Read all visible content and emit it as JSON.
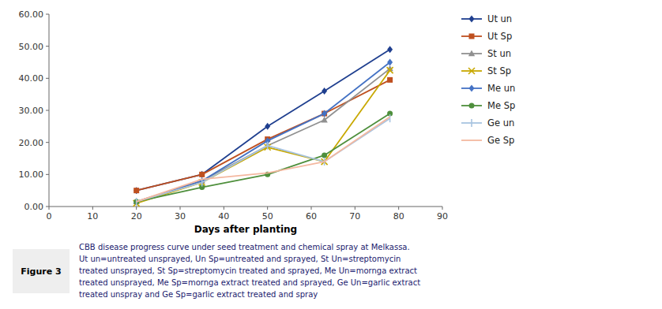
{
  "chart_data": {
    "type": "line",
    "xlabel": "Days after planting",
    "x": [
      20,
      35,
      50,
      63,
      78
    ],
    "series": [
      {
        "name": "Ut un",
        "color": "#1f3f8f",
        "marker": "diamond",
        "values": [
          5.0,
          10.0,
          25.0,
          36.0,
          49.0
        ]
      },
      {
        "name": "Ut Sp",
        "color": "#bf5020",
        "marker": "square",
        "values": [
          5.0,
          10.0,
          21.0,
          29.0,
          39.5
        ]
      },
      {
        "name": "St un",
        "color": "#909090",
        "marker": "triangle",
        "values": [
          1.5,
          8.0,
          19.0,
          27.0,
          43.0
        ]
      },
      {
        "name": "St Sp",
        "color": "#c8a800",
        "marker": "x",
        "values": [
          1.0,
          7.5,
          18.5,
          14.0,
          42.5
        ]
      },
      {
        "name": "Me un",
        "color": "#4472c4",
        "marker": "diamond",
        "values": [
          1.5,
          8.0,
          20.5,
          29.0,
          45.0
        ]
      },
      {
        "name": "Me Sp",
        "color": "#4e8f3c",
        "marker": "circle",
        "values": [
          1.5,
          6.0,
          10.0,
          16.0,
          29.0
        ]
      },
      {
        "name": "Ge un",
        "color": "#a8c4e0",
        "marker": "vline",
        "values": [
          1.5,
          7.5,
          19.0,
          14.0,
          27.5
        ]
      },
      {
        "name": "Ge Sp",
        "color": "#f4b8a0",
        "marker": "none",
        "values": [
          1.5,
          8.5,
          10.5,
          14.0,
          28.0
        ]
      }
    ],
    "xlim": [
      0,
      90
    ],
    "ylim": [
      0.0,
      60.0
    ],
    "xticks": [
      0,
      10,
      20,
      30,
      40,
      50,
      60,
      70,
      80,
      90
    ],
    "yticks": [
      {
        "value": 0.0,
        "label": "0.00"
      },
      {
        "value": 10.0,
        "label": "10.00"
      },
      {
        "value": 20.0,
        "label": "20.00"
      },
      {
        "value": 30.0,
        "label": "30.00"
      },
      {
        "value": 40.0,
        "label": "40.00"
      },
      {
        "value": 50.0,
        "label": "50.00"
      },
      {
        "value": 60.0,
        "label": "60.00"
      }
    ],
    "grid": false,
    "legend": "right",
    "figure_label": "Figure 3",
    "caption": [
      "CBB disease progress curve under seed treatment and chemical spray at Melkassa.",
      "Ut un=untreated unsprayed, Un Sp=untreated and sprayed, St Un=streptomycin",
      "treated unsprayed, St Sp=streptomycin treated and sprayed, Me Un=mornga extract",
      "treated unsprayed, Me Sp=mornga extract treated and sprayed, Ge Un=garlic extract",
      "treated unspray and Ge Sp=garlic extract treated and spray"
    ]
  }
}
